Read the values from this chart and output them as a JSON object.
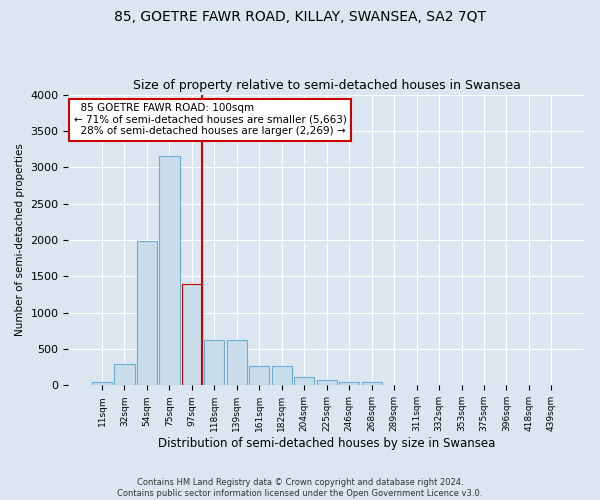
{
  "title": "85, GOETRE FAWR ROAD, KILLAY, SWANSEA, SA2 7QT",
  "subtitle": "Size of property relative to semi-detached houses in Swansea",
  "xlabel": "Distribution of semi-detached houses by size in Swansea",
  "ylabel": "Number of semi-detached properties",
  "footer_line1": "Contains HM Land Registry data © Crown copyright and database right 2024.",
  "footer_line2": "Contains public sector information licensed under the Open Government Licence v3.0.",
  "categories": [
    "11sqm",
    "32sqm",
    "54sqm",
    "75sqm",
    "97sqm",
    "118sqm",
    "139sqm",
    "161sqm",
    "182sqm",
    "204sqm",
    "225sqm",
    "246sqm",
    "268sqm",
    "289sqm",
    "311sqm",
    "332sqm",
    "353sqm",
    "375sqm",
    "396sqm",
    "418sqm",
    "439sqm"
  ],
  "values": [
    50,
    300,
    1980,
    3150,
    1400,
    620,
    620,
    270,
    270,
    110,
    70,
    50,
    40,
    10,
    5,
    3,
    2,
    2,
    2,
    2,
    2
  ],
  "bar_color": "#c9dcea",
  "bar_edge_color": "#6aaed6",
  "highlight_bar_index": 4,
  "highlight_bar_color": "#c9dcea",
  "highlight_bar_edge_color": "#cc0000",
  "vline_x": 4,
  "vline_color": "#cc0000",
  "annotation_text": "  85 GOETRE FAWR ROAD: 100sqm\n← 71% of semi-detached houses are smaller (5,663)\n  28% of semi-detached houses are larger (2,269) →",
  "annotation_box_color": "#ffffff",
  "annotation_box_edge_color": "#cc0000",
  "ylim": [
    0,
    4000
  ],
  "background_color": "#dce6f0",
  "plot_background": "#dce6f0",
  "title_fontsize": 10,
  "subtitle_fontsize": 9
}
